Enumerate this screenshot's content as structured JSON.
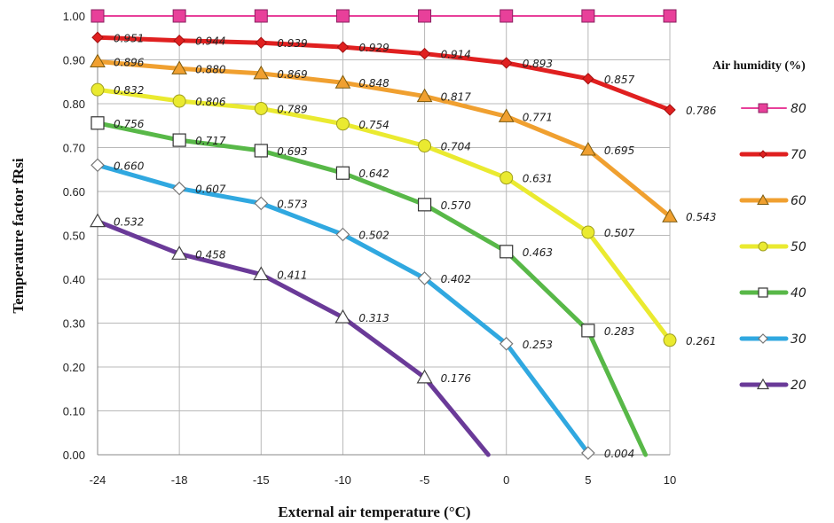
{
  "chart_data": {
    "type": "line",
    "xlabel": "External air temperature (°C)",
    "ylabel": "Temperature factor fRsi",
    "x_categories": [
      "-24",
      "-18",
      "-15",
      "-10",
      "-5",
      "0",
      "5",
      "10"
    ],
    "y_ticks": [
      "0.00",
      "0.10",
      "0.20",
      "0.30",
      "0.40",
      "0.50",
      "0.60",
      "0.70",
      "0.80",
      "0.90",
      "1.00"
    ],
    "ylim": [
      0,
      1.0
    ],
    "grid": true,
    "legend_title": "Air humidity (%)",
    "legend_position": "right",
    "series": [
      {
        "name": "80",
        "color": "#e8409a",
        "marker": "square-filled",
        "values": [
          1.0,
          1.0,
          1.0,
          1.0,
          1.0,
          1.0,
          1.0,
          1.0
        ],
        "labels": [
          "",
          "",
          "",
          "",
          "",
          "",
          "",
          ""
        ]
      },
      {
        "name": "70",
        "color": "#e02020",
        "marker": "diamond-filled",
        "values": [
          0.951,
          0.944,
          0.939,
          0.929,
          0.914,
          0.893,
          0.857,
          0.786
        ],
        "labels": [
          "0.951",
          "0.944",
          "0.939",
          "0.929",
          "0.914",
          "0.893",
          "0.857",
          "0.786"
        ]
      },
      {
        "name": "60",
        "color": "#f0a030",
        "marker": "triangle-filled",
        "values": [
          0.896,
          0.88,
          0.869,
          0.848,
          0.817,
          0.771,
          0.695,
          0.543
        ],
        "labels": [
          "0.896",
          "0.880",
          "0.869",
          "0.848",
          "0.817",
          "0.771",
          "0.695",
          "0.543"
        ]
      },
      {
        "name": "50",
        "color": "#eaea30",
        "marker": "circle-filled",
        "values": [
          0.832,
          0.806,
          0.789,
          0.754,
          0.704,
          0.631,
          0.507,
          0.261
        ],
        "labels": [
          "0.832",
          "0.806",
          "0.789",
          "0.754",
          "0.704",
          "0.631",
          "0.507",
          "0.261"
        ]
      },
      {
        "name": "40",
        "color": "#58b848",
        "marker": "square-open",
        "values": [
          0.756,
          0.717,
          0.693,
          0.642,
          0.57,
          0.463,
          0.283,
          -0.12
        ],
        "labels": [
          "0.756",
          "0.717",
          "0.693",
          "0.642",
          "0.570",
          "0.463",
          "0.283",
          ""
        ]
      },
      {
        "name": "30",
        "color": "#30a8e0",
        "marker": "diamond-open",
        "values": [
          0.66,
          0.607,
          0.573,
          0.502,
          0.402,
          0.253,
          0.004
        ],
        "labels": [
          "0.660",
          "0.607",
          "0.573",
          "0.502",
          "0.402",
          "0.253",
          "0.004"
        ]
      },
      {
        "name": "20",
        "color": "#6a3a98",
        "marker": "triangle-open",
        "values": [
          0.532,
          0.458,
          0.411,
          0.313,
          0.176,
          -0.05
        ],
        "labels": [
          "0.532",
          "0.458",
          "0.411",
          "0.313",
          "0.176",
          ""
        ]
      }
    ]
  }
}
